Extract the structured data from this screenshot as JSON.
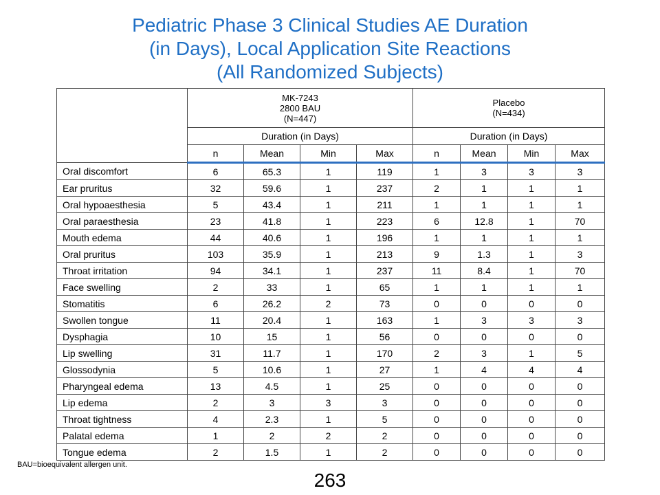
{
  "title": {
    "line1": "Pediatric Phase 3 Clinical Studies AE Duration",
    "line2": "(in Days), Local Application Site Reactions",
    "line3": "(All Randomized Subjects)"
  },
  "table": {
    "groups": [
      {
        "line1": "MK-7243",
        "line2": "2800 BAU",
        "line3": "(N=447)",
        "duration_label": "Duration (in Days)"
      },
      {
        "line1": "",
        "line2": "Placebo",
        "line3": "(N=434)",
        "duration_label": "Duration (in Days)"
      }
    ],
    "subheaders": [
      "n",
      "Mean",
      "Min",
      "Max",
      "n",
      "Mean",
      "Min",
      "Max"
    ],
    "rows": [
      {
        "label": "Oral discomfort",
        "values": [
          "6",
          "65.3",
          "1",
          "119",
          "1",
          "3",
          "3",
          "3"
        ]
      },
      {
        "label": "Ear pruritus",
        "values": [
          "32",
          "59.6",
          "1",
          "237",
          "2",
          "1",
          "1",
          "1"
        ]
      },
      {
        "label": "Oral hypoaesthesia",
        "values": [
          "5",
          "43.4",
          "1",
          "211",
          "1",
          "1",
          "1",
          "1"
        ]
      },
      {
        "label": "Oral paraesthesia",
        "values": [
          "23",
          "41.8",
          "1",
          "223",
          "6",
          "12.8",
          "1",
          "70"
        ]
      },
      {
        "label": "Mouth edema",
        "values": [
          "44",
          "40.6",
          "1",
          "196",
          "1",
          "1",
          "1",
          "1"
        ]
      },
      {
        "label": "Oral pruritus",
        "values": [
          "103",
          "35.9",
          "1",
          "213",
          "9",
          "1.3",
          "1",
          "3"
        ]
      },
      {
        "label": "Throat irritation",
        "values": [
          "94",
          "34.1",
          "1",
          "237",
          "11",
          "8.4",
          "1",
          "70"
        ]
      },
      {
        "label": "Face swelling",
        "values": [
          "2",
          "33",
          "1",
          "65",
          "1",
          "1",
          "1",
          "1"
        ]
      },
      {
        "label": "Stomatitis",
        "values": [
          "6",
          "26.2",
          "2",
          "73",
          "0",
          "0",
          "0",
          "0"
        ]
      },
      {
        "label": "Swollen tongue",
        "values": [
          "11",
          "20.4",
          "1",
          "163",
          "1",
          "3",
          "3",
          "3"
        ]
      },
      {
        "label": "Dysphagia",
        "values": [
          "10",
          "15",
          "1",
          "56",
          "0",
          "0",
          "0",
          "0"
        ]
      },
      {
        "label": "Lip swelling",
        "values": [
          "31",
          "11.7",
          "1",
          "170",
          "2",
          "3",
          "1",
          "5"
        ]
      },
      {
        "label": "Glossodynia",
        "values": [
          "5",
          "10.6",
          "1",
          "27",
          "1",
          "4",
          "4",
          "4"
        ]
      },
      {
        "label": "Pharyngeal edema",
        "values": [
          "13",
          "4.5",
          "1",
          "25",
          "0",
          "0",
          "0",
          "0"
        ]
      },
      {
        "label": "Lip edema",
        "values": [
          "2",
          "3",
          "3",
          "3",
          "0",
          "0",
          "0",
          "0"
        ]
      },
      {
        "label": "Throat tightness",
        "values": [
          "4",
          "2.3",
          "1",
          "5",
          "0",
          "0",
          "0",
          "0"
        ]
      },
      {
        "label": "Palatal edema",
        "values": [
          "1",
          "2",
          "2",
          "2",
          "0",
          "0",
          "0",
          "0"
        ]
      },
      {
        "label": "Tongue edema",
        "values": [
          "2",
          "1.5",
          "1",
          "2",
          "0",
          "0",
          "0",
          "0"
        ]
      }
    ]
  },
  "footnote": "BAU=bioequivalent  allergen unit.",
  "page_number": "263",
  "colors": {
    "title": "#1f6fc5",
    "header_rule": "#2d6fc0"
  }
}
